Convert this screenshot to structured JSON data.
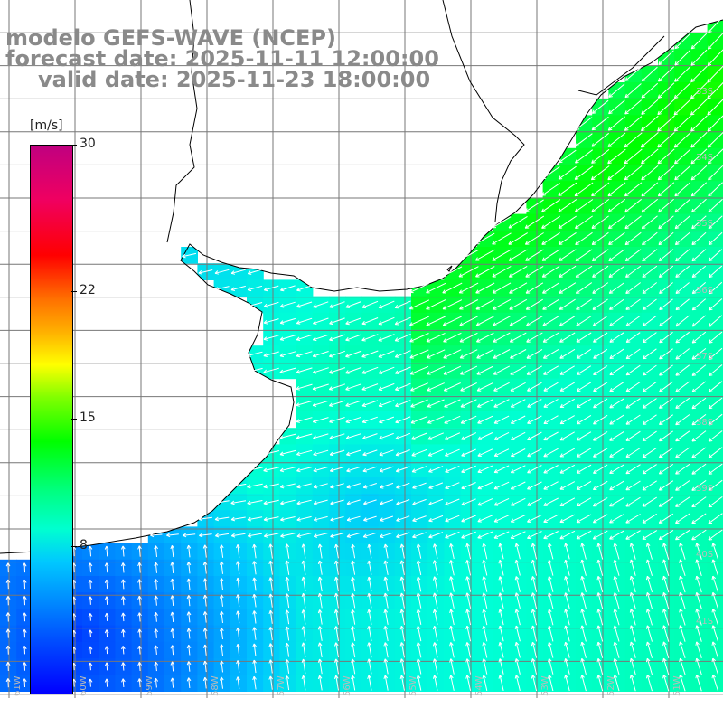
{
  "title": {
    "line1": "modelo GEFS-WAVE (NCEP)",
    "line2": "forecast date: 2025-11-11 12:00:00",
    "line3": "valid date: 2025-11-23 18:00:00"
  },
  "colorbar": {
    "units": "[m/s]",
    "min": 0,
    "max": 30,
    "labels": [
      "30",
      "22",
      "15",
      "8"
    ],
    "label_values": [
      30,
      22,
      15,
      8
    ],
    "colors": [
      "#0000ff",
      "#00c8ff",
      "#00ffd0",
      "#00ff00",
      "#ffff00",
      "#ff7000",
      "#ff0000",
      "#c00080"
    ]
  },
  "axes": {
    "lon_labels": [
      "61W",
      "60W",
      "59W",
      "58W",
      "57W",
      "56W",
      "55W",
      "54W",
      "53W",
      "52W",
      "51W"
    ],
    "lat_labels": [
      "33S",
      "34S",
      "35S",
      "36S",
      "37S",
      "38S",
      "39S",
      "40S",
      "41S"
    ],
    "grid": true
  },
  "map": {
    "field": "wind speed and direction",
    "land_color": "#ffffff",
    "coast_color": "#000000",
    "arrow_color": "#ffffff",
    "typical_direction": "southwest"
  }
}
